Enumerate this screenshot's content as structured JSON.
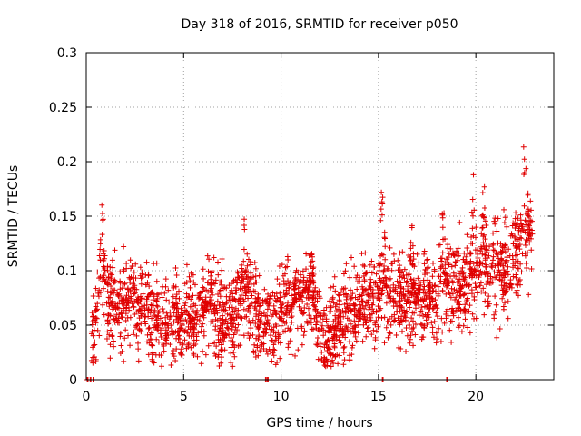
{
  "chart_data": {
    "type": "scatter",
    "title": "Day 318 of 2016, SRMTID for receiver p050",
    "xlabel": "GPS time / hours",
    "ylabel": "SRMTID / TECUs",
    "xlim": [
      0,
      24
    ],
    "ylim": [
      0,
      0.3
    ],
    "x_ticks": [
      0,
      5,
      10,
      15,
      20
    ],
    "x_tick_labels": [
      "0",
      "5",
      "10",
      "15",
      "20"
    ],
    "y_ticks": [
      0,
      0.05,
      0.1,
      0.15,
      0.2,
      0.25,
      0.3
    ],
    "y_tick_labels": [
      "0",
      "0.05",
      "0.1",
      "0.15",
      "0.2",
      "0.25",
      "0.3"
    ],
    "grid": true,
    "marker": "+",
    "color": "#e00000",
    "zero_points_x": [
      0.05,
      0.2,
      0.35,
      9.2,
      9.3,
      15.2,
      18.5
    ],
    "trend": [
      [
        0.0,
        0.0
      ],
      [
        0.3,
        0.04
      ],
      [
        0.5,
        0.055
      ],
      [
        0.8,
        0.09
      ],
      [
        1.2,
        0.075
      ],
      [
        2.0,
        0.065
      ],
      [
        2.5,
        0.07
      ],
      [
        3.0,
        0.06
      ],
      [
        3.5,
        0.06
      ],
      [
        4.0,
        0.05
      ],
      [
        4.5,
        0.05
      ],
      [
        5.0,
        0.055
      ],
      [
        5.5,
        0.06
      ],
      [
        6.0,
        0.06
      ],
      [
        6.5,
        0.065
      ],
      [
        7.0,
        0.06
      ],
      [
        7.5,
        0.055
      ],
      [
        8.0,
        0.07
      ],
      [
        8.3,
        0.08
      ],
      [
        8.8,
        0.055
      ],
      [
        9.3,
        0.05
      ],
      [
        10.0,
        0.06
      ],
      [
        10.5,
        0.065
      ],
      [
        11.0,
        0.075
      ],
      [
        11.5,
        0.08
      ],
      [
        12.0,
        0.04
      ],
      [
        12.3,
        0.035
      ],
      [
        12.8,
        0.05
      ],
      [
        13.5,
        0.06
      ],
      [
        14.0,
        0.065
      ],
      [
        14.5,
        0.07
      ],
      [
        15.0,
        0.075
      ],
      [
        15.5,
        0.08
      ],
      [
        16.0,
        0.075
      ],
      [
        16.5,
        0.07
      ],
      [
        17.0,
        0.07
      ],
      [
        17.5,
        0.08
      ],
      [
        18.0,
        0.075
      ],
      [
        18.5,
        0.085
      ],
      [
        19.0,
        0.09
      ],
      [
        19.5,
        0.085
      ],
      [
        20.0,
        0.09
      ],
      [
        20.5,
        0.095
      ],
      [
        21.0,
        0.09
      ],
      [
        21.5,
        0.1
      ],
      [
        22.0,
        0.11
      ],
      [
        22.4,
        0.12
      ],
      [
        22.8,
        0.13
      ]
    ],
    "spikes": [
      {
        "x": 0.8,
        "height": 0.09
      },
      {
        "x": 2.3,
        "height": 0.06
      },
      {
        "x": 6.3,
        "height": 0.05
      },
      {
        "x": 8.1,
        "height": 0.09
      },
      {
        "x": 10.8,
        "height": 0.04
      },
      {
        "x": 11.6,
        "height": 0.05
      },
      {
        "x": 15.2,
        "height": 0.12
      },
      {
        "x": 16.7,
        "height": 0.08
      },
      {
        "x": 18.3,
        "height": 0.1
      },
      {
        "x": 19.9,
        "height": 0.13
      },
      {
        "x": 20.4,
        "height": 0.1
      },
      {
        "x": 21.0,
        "height": 0.08
      },
      {
        "x": 22.5,
        "height": 0.13
      }
    ],
    "point_count": 2600,
    "random_seed": 318
  }
}
